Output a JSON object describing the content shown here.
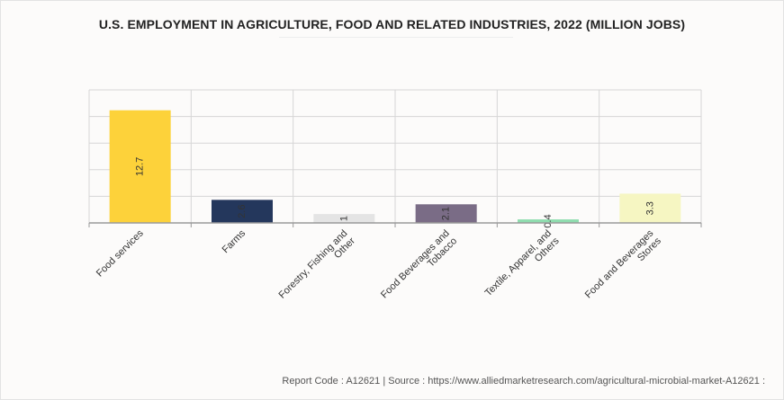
{
  "title": "U.S. EMPLOYMENT IN AGRICULTURE, FOOD AND RELATED INDUSTRIES, 2022 (MILLION JOBS)",
  "footer": "Report Code : A12621  |  Source : https://www.alliedmarketresearch.com/agricultural-microbial-market-A12621 :",
  "chart_data": {
    "type": "bar",
    "title": "U.S. EMPLOYMENT IN AGRICULTURE, FOOD AND RELATED INDUSTRIES, 2022 (MILLION JOBS)",
    "xlabel": "",
    "ylabel": "",
    "ylim": [
      0,
      15
    ],
    "grid": true,
    "legend": "none",
    "categories": [
      [
        "Food services"
      ],
      [
        "Farms"
      ],
      [
        "Forestry, Fishing and",
        "Other"
      ],
      [
        "Food Beverages and",
        "Tobacco"
      ],
      [
        "Textile, Apparel, and",
        "Others"
      ],
      [
        "Food and Beverages",
        "Stores"
      ]
    ],
    "values": [
      12.7,
      2.6,
      1,
      2.1,
      0.4,
      3.3
    ],
    "colors": [
      "#fdd23a",
      "#24375c",
      "#e4e4e4",
      "#7a6c86",
      "#8fdcae",
      "#f6f6c2"
    ]
  }
}
